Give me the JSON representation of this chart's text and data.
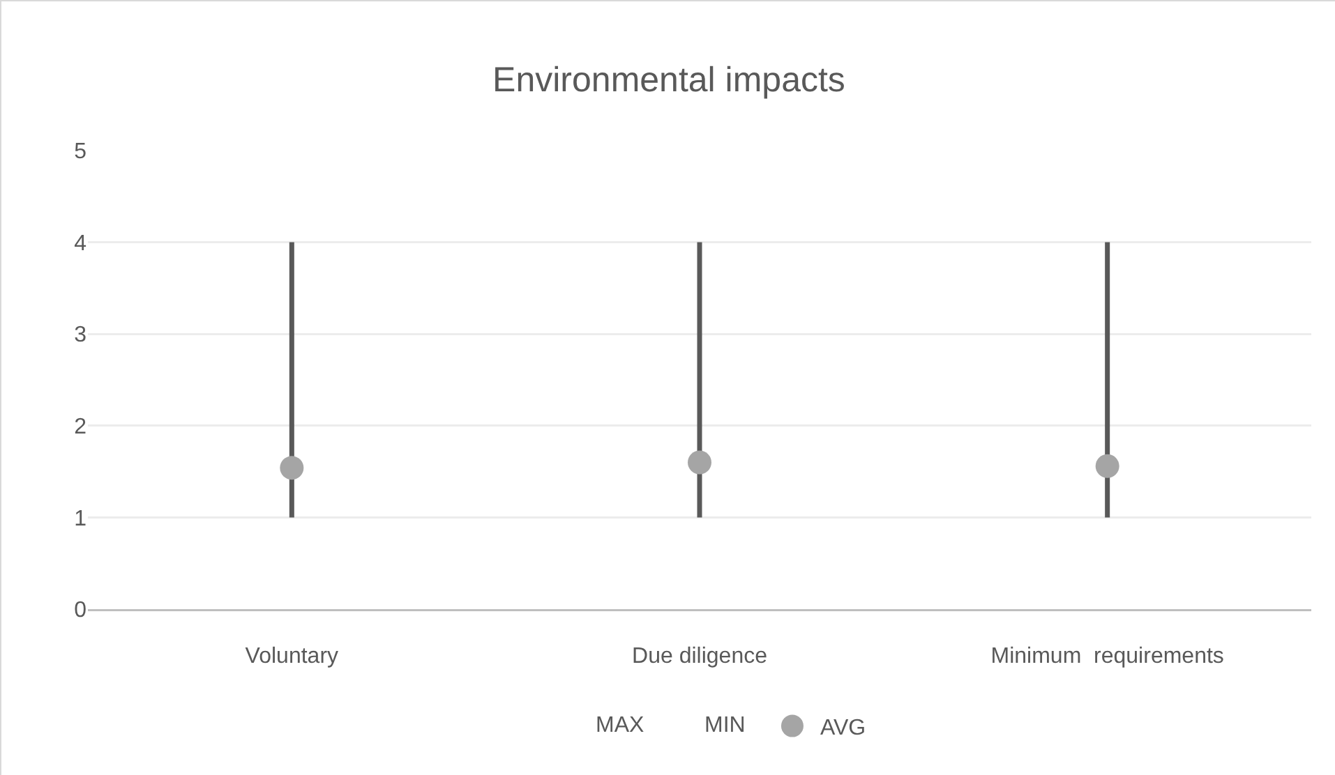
{
  "chart_data": {
    "type": "bar",
    "title": "Environmental impacts",
    "categories": [
      "Voluntary",
      "Due diligence",
      "Minimum  requirements"
    ],
    "series": [
      {
        "color": "#595959",
        "values": [
          3,
          3,
          3
        ],
        "base": [
          1,
          1,
          1
        ]
      },
      {
        "name": "AVG",
        "type": "scatter",
        "color": "#a5a5a5",
        "values": [
          1.54,
          1.6,
          1.56
        ]
      }
    ],
    "annotations": [
      "MAX",
      "MIN"
    ],
    "ylim": [
      0,
      5
    ],
    "yticks": [
      0,
      1,
      2,
      3,
      4,
      5
    ],
    "grid": "y",
    "legend": "bottom",
    "marker": "circle"
  }
}
